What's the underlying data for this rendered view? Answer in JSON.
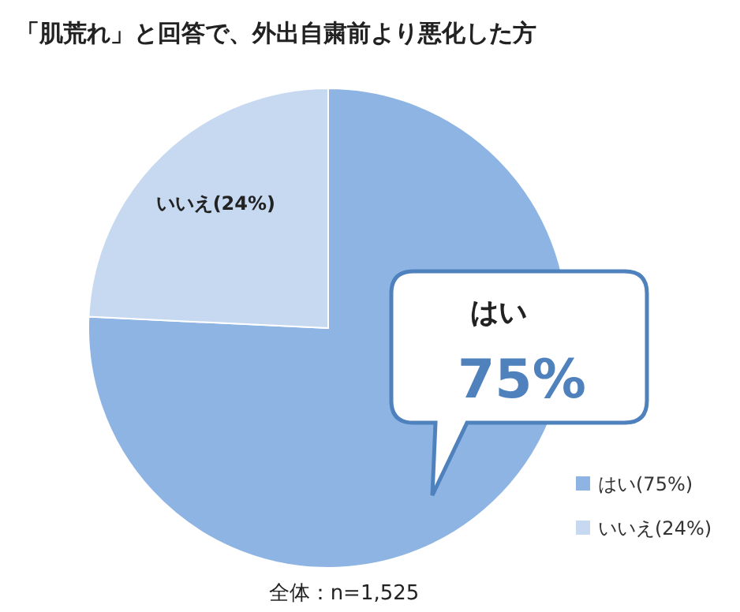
{
  "chart_data": {
    "type": "pie",
    "title": "「肌荒れ」と回答で、外出自粛前より悪化した方",
    "categories": [
      "はい",
      "いいえ"
    ],
    "values": [
      75,
      24
    ],
    "value_labels": [
      "(75%)",
      "(24%)"
    ],
    "colors": [
      "#8eb4e3",
      "#c6d9f1"
    ],
    "legend": "bottom right",
    "annotations": [
      {
        "text": "75%",
        "x": "はい"
      },
      "全体：n=1,525"
    ]
  }
}
